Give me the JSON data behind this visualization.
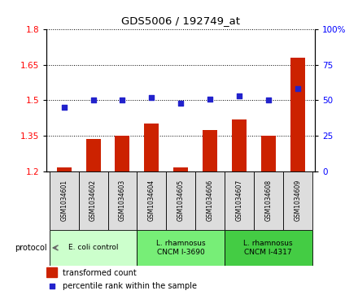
{
  "title": "GDS5006 / 192749_at",
  "samples": [
    "GSM1034601",
    "GSM1034602",
    "GSM1034603",
    "GSM1034604",
    "GSM1034605",
    "GSM1034606",
    "GSM1034607",
    "GSM1034608",
    "GSM1034609"
  ],
  "transformed_count": [
    1.215,
    1.335,
    1.35,
    1.4,
    1.215,
    1.375,
    1.42,
    1.35,
    1.68
  ],
  "percentile_rank": [
    45,
    50,
    50,
    52,
    48,
    51,
    53,
    50,
    58
  ],
  "left_ylim": [
    1.2,
    1.8
  ],
  "right_ylim": [
    0,
    100
  ],
  "left_yticks": [
    1.2,
    1.35,
    1.5,
    1.65,
    1.8
  ],
  "left_yticklabels": [
    "1.2",
    "1.35",
    "1.5",
    "1.65",
    "1.8"
  ],
  "right_yticks": [
    0,
    25,
    50,
    75,
    100
  ],
  "right_yticklabels": [
    "0",
    "25",
    "50",
    "75",
    "100%"
  ],
  "bar_color": "#cc2200",
  "dot_color": "#2222cc",
  "protocol_groups": [
    {
      "label": "E. coli control",
      "start": 0,
      "end": 3,
      "color": "#ccffcc"
    },
    {
      "label": "L. rhamnosus\nCNCM I-3690",
      "start": 3,
      "end": 6,
      "color": "#77ee77"
    },
    {
      "label": "L. rhamnosus\nCNCM I-4317",
      "start": 6,
      "end": 9,
      "color": "#44cc44"
    }
  ],
  "legend_bar_label": "transformed count",
  "legend_dot_label": "percentile rank within the sample",
  "bar_width": 0.5,
  "cell_bg": "#dddddd"
}
